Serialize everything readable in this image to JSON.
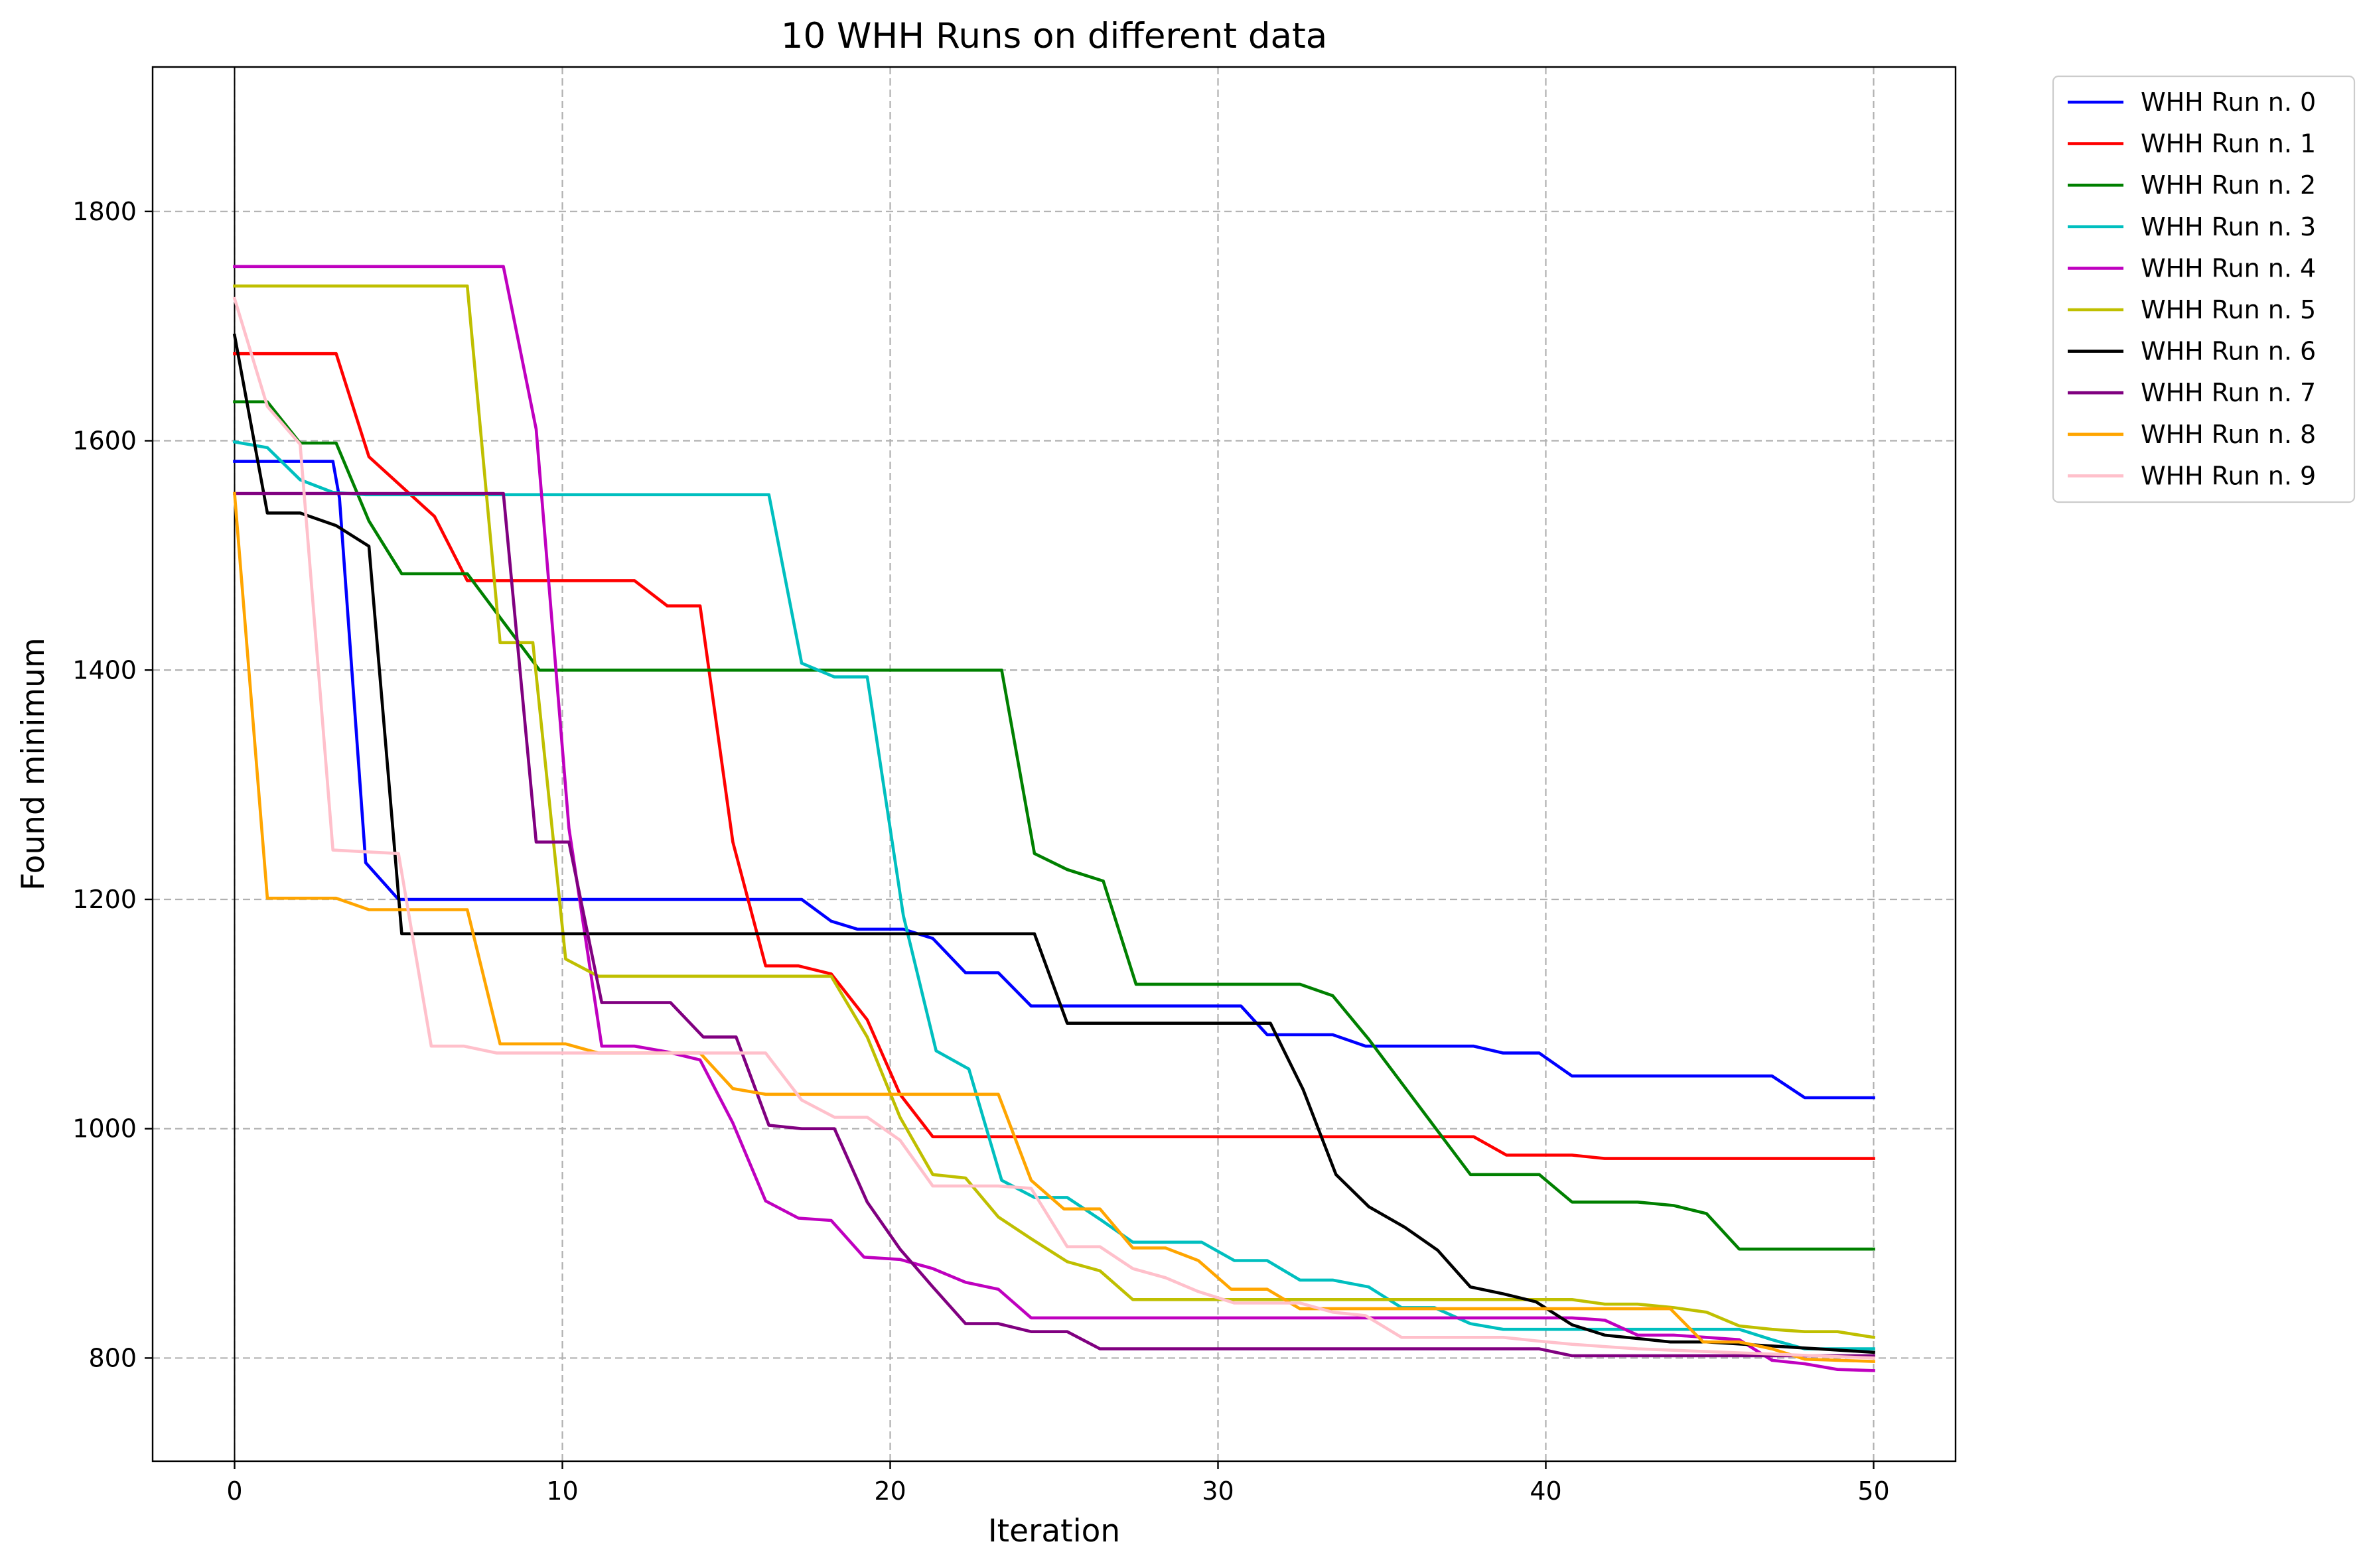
{
  "chart_data": {
    "type": "line",
    "title": "10 WHH Runs on different data",
    "xlabel": "Iteration",
    "ylabel": "Found minimum",
    "xlim": [
      -2.5,
      52.5
    ],
    "ylim": [
      710,
      1926
    ],
    "xticks": [
      0,
      10,
      20,
      30,
      40,
      50
    ],
    "yticks": [
      800,
      1000,
      1200,
      1400,
      1600,
      1800
    ],
    "grid": true,
    "legend_position": "outside-top-right",
    "vertical_reference_line_x": 0,
    "series": [
      {
        "name": "WHH Run n. 0",
        "color": "#0000ff",
        "points": [
          [
            0,
            1582
          ],
          [
            1,
            1582
          ],
          [
            3,
            1582
          ],
          [
            3.2,
            1550
          ],
          [
            4,
            1232
          ],
          [
            5,
            1200
          ],
          [
            17.3,
            1200
          ],
          [
            18.2,
            1181
          ],
          [
            19,
            1174
          ],
          [
            20.4,
            1174
          ],
          [
            21.3,
            1166
          ],
          [
            22.3,
            1136
          ],
          [
            23.3,
            1136
          ],
          [
            24.3,
            1107
          ],
          [
            30.7,
            1107
          ],
          [
            31.5,
            1082
          ],
          [
            33.5,
            1082
          ],
          [
            34.5,
            1072
          ],
          [
            37.8,
            1072
          ],
          [
            38.7,
            1066
          ],
          [
            39.8,
            1066
          ],
          [
            40.8,
            1046
          ],
          [
            46.9,
            1046
          ],
          [
            47.9,
            1027
          ],
          [
            50,
            1027
          ]
        ]
      },
      {
        "name": "WHH Run n. 1",
        "color": "#ff0000",
        "points": [
          [
            0,
            1676
          ],
          [
            3.1,
            1676
          ],
          [
            4.1,
            1586
          ],
          [
            6.1,
            1534
          ],
          [
            7.1,
            1478
          ],
          [
            12.2,
            1478
          ],
          [
            13.2,
            1456
          ],
          [
            14.2,
            1456
          ],
          [
            15.2,
            1250
          ],
          [
            16.2,
            1142
          ],
          [
            17.2,
            1142
          ],
          [
            18.2,
            1135
          ],
          [
            19.3,
            1095
          ],
          [
            20.3,
            1030
          ],
          [
            21.3,
            993
          ],
          [
            37.8,
            993
          ],
          [
            38.8,
            977
          ],
          [
            40.8,
            977
          ],
          [
            41.8,
            974
          ],
          [
            50,
            974
          ]
        ]
      },
      {
        "name": "WHH Run n. 2",
        "color": "#008000",
        "points": [
          [
            0,
            1634
          ],
          [
            1,
            1634
          ],
          [
            2,
            1598
          ],
          [
            3.1,
            1598
          ],
          [
            4.1,
            1530
          ],
          [
            5.1,
            1484
          ],
          [
            7.1,
            1484
          ],
          [
            9.3,
            1400
          ],
          [
            23.4,
            1400
          ],
          [
            24.4,
            1240
          ],
          [
            25.4,
            1226
          ],
          [
            26.5,
            1216
          ],
          [
            27.5,
            1126
          ],
          [
            32.5,
            1126
          ],
          [
            33.5,
            1116
          ],
          [
            34.6,
            1078
          ],
          [
            35.6,
            1040
          ],
          [
            37.7,
            960
          ],
          [
            39.8,
            960
          ],
          [
            40.8,
            936
          ],
          [
            42.8,
            936
          ],
          [
            43.9,
            933
          ],
          [
            44.9,
            926
          ],
          [
            45.9,
            895
          ],
          [
            50,
            895
          ]
        ]
      },
      {
        "name": "WHH Run n. 3",
        "color": "#00bfbf",
        "points": [
          [
            0,
            1599
          ],
          [
            1,
            1594
          ],
          [
            2,
            1566
          ],
          [
            3,
            1555
          ],
          [
            4,
            1553
          ],
          [
            16.3,
            1553
          ],
          [
            17.3,
            1406
          ],
          [
            18.3,
            1394
          ],
          [
            19.3,
            1394
          ],
          [
            20.4,
            1186
          ],
          [
            21.4,
            1068
          ],
          [
            22.4,
            1052
          ],
          [
            23.4,
            955
          ],
          [
            24.4,
            940
          ],
          [
            25.4,
            940
          ],
          [
            26.4,
            921
          ],
          [
            27.4,
            901
          ],
          [
            29.5,
            901
          ],
          [
            30.5,
            885
          ],
          [
            31.5,
            885
          ],
          [
            32.5,
            868
          ],
          [
            33.5,
            868
          ],
          [
            34.6,
            862
          ],
          [
            35.6,
            844
          ],
          [
            36.6,
            844
          ],
          [
            37.7,
            830
          ],
          [
            38.7,
            825
          ],
          [
            45.9,
            825
          ],
          [
            46.9,
            816
          ],
          [
            47.9,
            808
          ],
          [
            50,
            808
          ]
        ]
      },
      {
        "name": "WHH Run n. 4",
        "color": "#bf00bf",
        "points": [
          [
            0,
            1752
          ],
          [
            8.2,
            1752
          ],
          [
            9.2,
            1610
          ],
          [
            10.2,
            1262
          ],
          [
            11.2,
            1072
          ],
          [
            12.2,
            1072
          ],
          [
            13.2,
            1067
          ],
          [
            14.2,
            1060
          ],
          [
            15.2,
            1005
          ],
          [
            16.2,
            937
          ],
          [
            17.2,
            922
          ],
          [
            18.2,
            920
          ],
          [
            19.2,
            888
          ],
          [
            20.3,
            886
          ],
          [
            21.3,
            878
          ],
          [
            22.3,
            866
          ],
          [
            23.3,
            860
          ],
          [
            24.3,
            835
          ],
          [
            40.8,
            835
          ],
          [
            41.8,
            833
          ],
          [
            42.8,
            820
          ],
          [
            43.9,
            820
          ],
          [
            44.9,
            818
          ],
          [
            45.9,
            816
          ],
          [
            46.9,
            798
          ],
          [
            47.9,
            795
          ],
          [
            48.9,
            790
          ],
          [
            50,
            789
          ]
        ]
      },
      {
        "name": "WHH Run n. 5",
        "color": "#bfbf00",
        "points": [
          [
            0,
            1735
          ],
          [
            7.1,
            1735
          ],
          [
            8.1,
            1424
          ],
          [
            9.1,
            1424
          ],
          [
            10.1,
            1148
          ],
          [
            11.1,
            1133
          ],
          [
            18.2,
            1133
          ],
          [
            19.3,
            1080
          ],
          [
            20.3,
            1010
          ],
          [
            21.3,
            960
          ],
          [
            22.3,
            957
          ],
          [
            23.3,
            923
          ],
          [
            24.3,
            904
          ],
          [
            25.4,
            884
          ],
          [
            26.4,
            876
          ],
          [
            27.4,
            851
          ],
          [
            39.8,
            851
          ],
          [
            40.8,
            851
          ],
          [
            41.8,
            847
          ],
          [
            42.8,
            847
          ],
          [
            43.9,
            844
          ],
          [
            44.9,
            840
          ],
          [
            45.9,
            828
          ],
          [
            46.9,
            825
          ],
          [
            47.9,
            823
          ],
          [
            48.9,
            823
          ],
          [
            50,
            818
          ]
        ]
      },
      {
        "name": "WHH Run n. 6",
        "color": "#000000",
        "points": [
          [
            0,
            1692
          ],
          [
            1,
            1537
          ],
          [
            2,
            1537
          ],
          [
            3.1,
            1526
          ],
          [
            4.1,
            1508
          ],
          [
            5.1,
            1170
          ],
          [
            24.4,
            1170
          ],
          [
            25.4,
            1092
          ],
          [
            31.6,
            1092
          ],
          [
            32.6,
            1034
          ],
          [
            33.6,
            960
          ],
          [
            34.6,
            932
          ],
          [
            35.7,
            914
          ],
          [
            36.7,
            894
          ],
          [
            37.7,
            862
          ],
          [
            38.7,
            856
          ],
          [
            39.7,
            849
          ],
          [
            40.8,
            829
          ],
          [
            41.8,
            820
          ],
          [
            42.8,
            817
          ],
          [
            43.8,
            814
          ],
          [
            44.9,
            814
          ],
          [
            50,
            805
          ]
        ]
      },
      {
        "name": "WHH Run n. 7",
        "color": "#800080",
        "points": [
          [
            0,
            1554
          ],
          [
            8.2,
            1554
          ],
          [
            9.2,
            1250
          ],
          [
            10.2,
            1250
          ],
          [
            11.2,
            1110
          ],
          [
            13.3,
            1110
          ],
          [
            14.3,
            1080
          ],
          [
            15.3,
            1080
          ],
          [
            16.3,
            1003
          ],
          [
            17.3,
            1000
          ],
          [
            18.3,
            1000
          ],
          [
            19.3,
            936
          ],
          [
            20.3,
            895
          ],
          [
            21.3,
            862
          ],
          [
            22.3,
            830
          ],
          [
            23.3,
            830
          ],
          [
            24.3,
            823
          ],
          [
            25.4,
            823
          ],
          [
            26.4,
            808
          ],
          [
            39.8,
            808
          ],
          [
            40.8,
            802
          ],
          [
            50,
            802
          ]
        ]
      },
      {
        "name": "WHH Run n. 8",
        "color": "#ffa500",
        "points": [
          [
            0,
            1554
          ],
          [
            1,
            1201
          ],
          [
            3.1,
            1201
          ],
          [
            4.1,
            1191
          ],
          [
            7.1,
            1191
          ],
          [
            8.1,
            1074
          ],
          [
            10.1,
            1074
          ],
          [
            11.1,
            1066
          ],
          [
            14.2,
            1066
          ],
          [
            15.2,
            1035
          ],
          [
            16.2,
            1030
          ],
          [
            23.3,
            1030
          ],
          [
            24.3,
            955
          ],
          [
            25.3,
            930
          ],
          [
            26.4,
            930
          ],
          [
            27.4,
            896
          ],
          [
            28.4,
            896
          ],
          [
            29.4,
            885
          ],
          [
            30.4,
            860
          ],
          [
            31.5,
            860
          ],
          [
            32.5,
            843
          ],
          [
            42.8,
            843
          ],
          [
            43.8,
            843
          ],
          [
            44.8,
            814
          ],
          [
            45.9,
            814
          ],
          [
            46.9,
            808
          ],
          [
            47.9,
            799
          ],
          [
            50,
            797
          ]
        ]
      },
      {
        "name": "WHH Run n. 9",
        "color": "#ffc0cb",
        "points": [
          [
            0,
            1724
          ],
          [
            1,
            1630
          ],
          [
            2,
            1597
          ],
          [
            3,
            1243
          ],
          [
            5,
            1240
          ],
          [
            6,
            1072
          ],
          [
            7,
            1072
          ],
          [
            8,
            1066
          ],
          [
            16.2,
            1066
          ],
          [
            17.3,
            1025
          ],
          [
            18.3,
            1010
          ],
          [
            19.3,
            1010
          ],
          [
            20.3,
            990
          ],
          [
            21.3,
            950
          ],
          [
            23.3,
            950
          ],
          [
            24.3,
            948
          ],
          [
            25.4,
            897
          ],
          [
            26.4,
            897
          ],
          [
            27.4,
            878
          ],
          [
            28.4,
            870
          ],
          [
            29.4,
            858
          ],
          [
            30.5,
            848
          ],
          [
            32.5,
            848
          ],
          [
            33.5,
            840
          ],
          [
            34.5,
            837
          ],
          [
            35.6,
            818
          ],
          [
            38.7,
            818
          ],
          [
            39.7,
            815
          ],
          [
            40.8,
            812
          ],
          [
            42.8,
            808
          ],
          [
            50,
            800
          ]
        ]
      }
    ]
  }
}
